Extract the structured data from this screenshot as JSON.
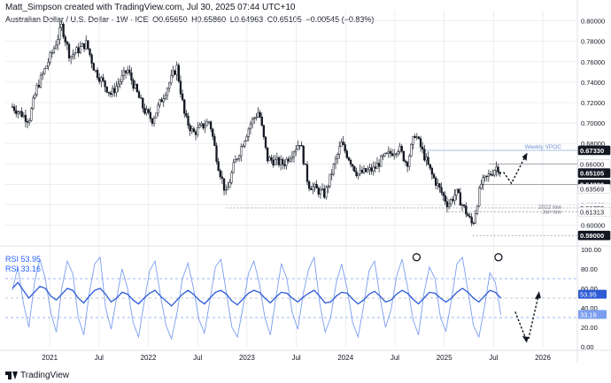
{
  "header": {
    "author_line": "Matt_Simpson created with TradingView.com, Jul 30, 2025 07:44 UTC+10",
    "symbol": "Australian Dollar / U.S. Dollar · 1W · ICE",
    "open": "O0.65650",
    "high": "H0.65860",
    "low": "L0.64963",
    "close": "C0.65105",
    "change": "−0.00545 (−0.83%)"
  },
  "footer": {
    "brand": "TradingView"
  },
  "annotations": {
    "weekly_vpoc": "Weekly VPOC",
    "low_2022": "2022 low",
    "jan_low": "Jan low"
  },
  "colors": {
    "candle": "#131722",
    "rsi_fast": "#7b9ef0",
    "rsi_slow": "#2d5bd6",
    "axis_text": "#131722",
    "grid": "#e0e3eb",
    "level_line": "#9598a1",
    "vpoc_line": "#8fa7d8"
  },
  "chart_data": [
    {
      "type": "candlestick",
      "title": "Australian Dollar / U.S. Dollar · 1W · ICE",
      "ylim": [
        0.585,
        0.81
      ],
      "y_ticks": [
        "0.80000",
        "0.78000",
        "0.76000",
        "0.74000",
        "0.72000",
        "0.70000",
        "0.68000",
        "0.66000",
        "0.64000",
        "0.62000",
        "0.60000"
      ],
      "price_labels": [
        {
          "value": 0.6733,
          "text": "0.67330",
          "style": "dark"
        },
        {
          "value": 0.66,
          "text": "0.66000",
          "style": "plain"
        },
        {
          "value": 0.65105,
          "text": "0.65105",
          "style": "dark"
        },
        {
          "value": 0.64,
          "text": "0.64000",
          "style": "dark"
        },
        {
          "value": 0.63569,
          "text": "0.63569",
          "style": "plain"
        },
        {
          "value": 0.617,
          "text": "0.61700",
          "style": "plain"
        },
        {
          "value": 0.61313,
          "text": "0.61313",
          "style": "plain"
        },
        {
          "value": 0.59,
          "text": "0.59000",
          "style": "dark"
        }
      ],
      "levels": [
        {
          "name": "weekly-vpoc",
          "value": 0.6733,
          "from": "2024-10"
        },
        {
          "name": "resistance-0.66",
          "value": 0.66,
          "from": "2025-06"
        },
        {
          "name": "support-0.64",
          "value": 0.64,
          "from": "2025-05"
        },
        {
          "name": "2022-low",
          "value": 0.617,
          "from": "2022-10"
        },
        {
          "name": "jan-low",
          "value": 0.61313,
          "from": "2025-01"
        },
        {
          "name": "low-0.59",
          "value": 0.59,
          "from": "2025-04"
        }
      ],
      "x_ticks": [
        "2021",
        "Jul",
        "2022",
        "Jul",
        "2023",
        "Jul",
        "2024",
        "Jul",
        "2025",
        "Jul",
        "2026"
      ],
      "close_path": [
        [
          "2020-08",
          0.716
        ],
        [
          "2020-10",
          0.703
        ],
        [
          "2020-11",
          0.735
        ],
        [
          "2021-01",
          0.772
        ],
        [
          "2021-02",
          0.795
        ],
        [
          "2021-03",
          0.765
        ],
        [
          "2021-05",
          0.778
        ],
        [
          "2021-06",
          0.752
        ],
        [
          "2021-08",
          0.728
        ],
        [
          "2021-10",
          0.752
        ],
        [
          "2021-12",
          0.713
        ],
        [
          "2022-01",
          0.703
        ],
        [
          "2022-04",
          0.755
        ],
        [
          "2022-05",
          0.705
        ],
        [
          "2022-06",
          0.69
        ],
        [
          "2022-08",
          0.702
        ],
        [
          "2022-09",
          0.66
        ],
        [
          "2022-10",
          0.63
        ],
        [
          "2022-11",
          0.66
        ],
        [
          "2023-01",
          0.7
        ],
        [
          "2023-02",
          0.712
        ],
        [
          "2023-03",
          0.665
        ],
        [
          "2023-05",
          0.66
        ],
        [
          "2023-07",
          0.682
        ],
        [
          "2023-08",
          0.64
        ],
        [
          "2023-10",
          0.63
        ],
        [
          "2023-12",
          0.68
        ],
        [
          "2024-02",
          0.65
        ],
        [
          "2024-04",
          0.655
        ],
        [
          "2024-05",
          0.665
        ],
        [
          "2024-07",
          0.676
        ],
        [
          "2024-08",
          0.66
        ],
        [
          "2024-09",
          0.69
        ],
        [
          "2024-10",
          0.67
        ],
        [
          "2024-11",
          0.65
        ],
        [
          "2025-01",
          0.62
        ],
        [
          "2025-02",
          0.632
        ],
        [
          "2025-04",
          0.6
        ],
        [
          "2025-05",
          0.64
        ],
        [
          "2025-07",
          0.658
        ],
        [
          "2025-07-28",
          0.651
        ]
      ]
    },
    {
      "type": "line",
      "title": "RSI",
      "ylim": [
        0,
        100
      ],
      "y_ticks": [
        "100.00",
        "80.00",
        "60.00",
        "40.00",
        "20.00",
        "0.00"
      ],
      "bands": [
        70,
        50,
        30
      ],
      "series": [
        {
          "name": "RSI",
          "value_label": "53.95",
          "last": 53.95
        },
        {
          "name": "RSI",
          "value_label": "33.16",
          "last": 33.16
        }
      ],
      "fast_rsi": [
        58,
        82,
        45,
        20,
        65,
        90,
        70,
        35,
        15,
        60,
        88,
        75,
        30,
        12,
        55,
        85,
        92,
        40,
        18,
        50,
        80,
        60,
        25,
        10,
        45,
        78,
        88,
        52,
        22,
        8,
        35,
        70,
        86,
        60,
        28,
        14,
        48,
        82,
        90,
        55,
        20,
        10,
        40,
        75,
        88,
        65,
        30,
        12,
        50,
        85,
        70,
        35,
        18,
        55,
        80,
        92,
        45,
        15,
        30,
        65,
        85,
        60,
        25,
        10,
        42,
        78,
        88,
        50,
        20,
        38,
        72,
        90,
        62,
        28,
        12,
        55,
        82,
        70,
        30,
        16,
        48,
        85,
        92,
        58,
        22,
        10,
        40,
        76,
        66,
        33
      ],
      "slow_rsi": [
        60,
        66,
        58,
        50,
        56,
        62,
        60,
        52,
        48,
        54,
        60,
        58,
        50,
        45,
        52,
        58,
        60,
        54,
        46,
        50,
        56,
        54,
        48,
        44,
        50,
        55,
        58,
        52,
        47,
        42,
        48,
        54,
        58,
        54,
        48,
        44,
        50,
        56,
        58,
        54,
        47,
        43,
        49,
        55,
        58,
        56,
        50,
        45,
        51,
        56,
        55,
        50,
        46,
        51,
        55,
        58,
        52,
        45,
        46,
        52,
        56,
        55,
        49,
        44,
        48,
        54,
        57,
        52,
        46,
        48,
        54,
        58,
        55,
        49,
        44,
        50,
        56,
        55,
        50,
        46,
        50,
        56,
        60,
        56,
        50,
        46,
        52,
        58,
        56,
        50
      ]
    }
  ]
}
